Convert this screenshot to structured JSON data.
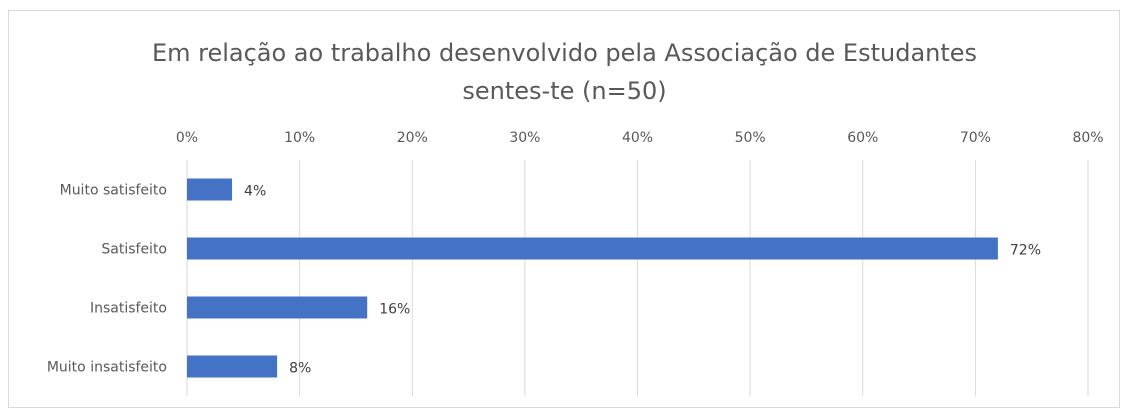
{
  "chart_data": {
    "type": "bar",
    "orientation": "horizontal",
    "title": "Em relação ao trabalho desenvolvido pela Associação de Estudantes sentes-te (n=50)",
    "title_lines": [
      "Em relação ao trabalho desenvolvido pela Associação de Estudantes",
      "sentes-te (n=50)"
    ],
    "categories": [
      "Muito satisfeito",
      "Satisfeito",
      "Insatisfeito",
      "Muito insatisfeito"
    ],
    "values": [
      4,
      72,
      16,
      8
    ],
    "data_labels": [
      "4%",
      "72%",
      "16%",
      "8%"
    ],
    "xlim": [
      0,
      80
    ],
    "xticks": [
      0,
      10,
      20,
      30,
      40,
      50,
      60,
      70,
      80
    ],
    "xtick_labels": [
      "0%",
      "10%",
      "20%",
      "30%",
      "40%",
      "50%",
      "60%",
      "70%",
      "80%"
    ],
    "axis_position": "top",
    "grid": true,
    "bar_color": "#4472c4",
    "grid_color": "#d9d9d9",
    "legend": "none"
  }
}
